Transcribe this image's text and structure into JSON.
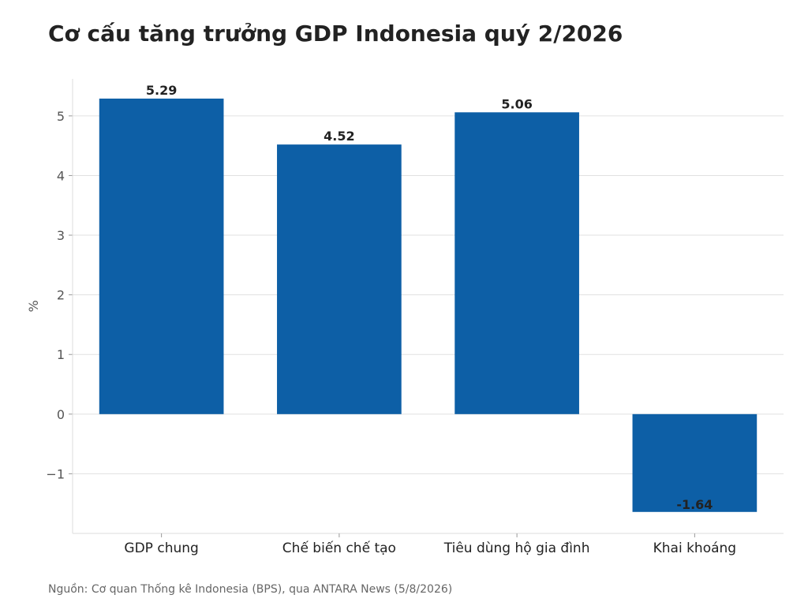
{
  "title": "Cơ cấu tăng trưởng GDP Indonesia quý 2/2026",
  "source": "Nguồn: Cơ quan Thống kê Indonesia (BPS), qua ANTARA News (5/8/2026)",
  "chart_data": {
    "type": "bar",
    "categories": [
      "GDP chung",
      "Chế biến chế tạo",
      "Tiêu dùng hộ gia đình",
      "Khai khoáng"
    ],
    "values": [
      5.29,
      4.52,
      5.06,
      -1.64
    ],
    "data_labels": [
      "5.29",
      "4.52",
      "5.06",
      "-1.64"
    ],
    "ylabel": "%",
    "ylim": [
      -2.0,
      5.62
    ],
    "yticks": [
      -1,
      0,
      1,
      2,
      3,
      4,
      5
    ],
    "ytick_labels": [
      "−1",
      "0",
      "1",
      "2",
      "3",
      "4",
      "5"
    ],
    "grid": true,
    "bar_color": "#0d5fa6"
  }
}
